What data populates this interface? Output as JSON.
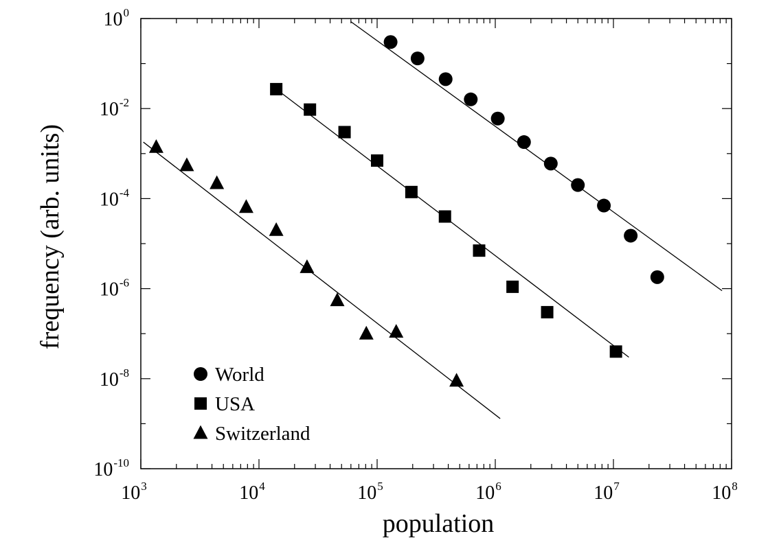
{
  "chart_data": {
    "type": "scatter",
    "title": "",
    "xlabel": "population",
    "ylabel": "frequency (arb. units)",
    "xscale": "log",
    "yscale": "log",
    "xlim": [
      1000,
      100000000
    ],
    "ylim": [
      1e-10,
      1
    ],
    "x_ticks": [
      {
        "base": "10",
        "exp": "3",
        "value": 1000
      },
      {
        "base": "10",
        "exp": "4",
        "value": 10000
      },
      {
        "base": "10",
        "exp": "5",
        "value": 100000
      },
      {
        "base": "10",
        "exp": "6",
        "value": 1000000
      },
      {
        "base": "10",
        "exp": "7",
        "value": 10000000
      },
      {
        "base": "10",
        "exp": "8",
        "value": 100000000
      }
    ],
    "y_ticks": [
      {
        "base": "10",
        "exp": "0",
        "value": 1
      },
      {
        "base": "10",
        "exp": "-2",
        "value": 0.01
      },
      {
        "base": "10",
        "exp": "-4",
        "value": 0.0001
      },
      {
        "base": "10",
        "exp": "-6",
        "value": 1e-06
      },
      {
        "base": "10",
        "exp": "-8",
        "value": 1e-08
      },
      {
        "base": "10",
        "exp": "-10",
        "value": 1e-10
      }
    ],
    "grid": false,
    "legend_position": "bottom-left",
    "series": [
      {
        "name": "World",
        "marker": "circle",
        "color": "#000000",
        "points": [
          [
            130000,
            0.3
          ],
          [
            220000,
            0.13
          ],
          [
            380000,
            0.045
          ],
          [
            620000,
            0.016
          ],
          [
            1050000,
            0.006
          ],
          [
            1750000,
            0.0018
          ],
          [
            2950000,
            0.0006
          ],
          [
            5000000,
            0.0002
          ],
          [
            8300000,
            7e-05
          ],
          [
            14000000,
            1.5e-05
          ],
          [
            23500000,
            1.8e-06
          ]
        ],
        "fit_line": [
          [
            60000,
            0.85
          ],
          [
            83000000,
            9e-07
          ]
        ]
      },
      {
        "name": "USA",
        "marker": "square",
        "color": "#000000",
        "points": [
          [
            14000,
            0.027
          ],
          [
            27000,
            0.0095
          ],
          [
            53000,
            0.003
          ],
          [
            100000,
            0.0007
          ],
          [
            195000,
            0.00014
          ],
          [
            375000,
            4e-05
          ],
          [
            730000,
            7e-06
          ],
          [
            1400000,
            1.1e-06
          ],
          [
            2750000,
            3e-07
          ],
          [
            10500000,
            4e-08
          ]
        ],
        "fit_line": [
          [
            14000,
            0.027
          ],
          [
            13500000,
            3e-08
          ]
        ]
      },
      {
        "name": "Switzerland",
        "marker": "triangle",
        "color": "#000000",
        "points": [
          [
            1350,
            0.0014
          ],
          [
            2450,
            0.00055
          ],
          [
            4400,
            0.00022
          ],
          [
            7800,
            6.5e-05
          ],
          [
            14000,
            2e-05
          ],
          [
            25500,
            3e-06
          ],
          [
            46000,
            5.5e-07
          ],
          [
            81000,
            1e-07
          ],
          [
            145000,
            1.1e-07
          ],
          [
            470000,
            9e-09
          ]
        ],
        "fit_line": [
          [
            1050,
            0.0018
          ],
          [
            1100000,
            1.3e-09
          ]
        ]
      }
    ]
  }
}
